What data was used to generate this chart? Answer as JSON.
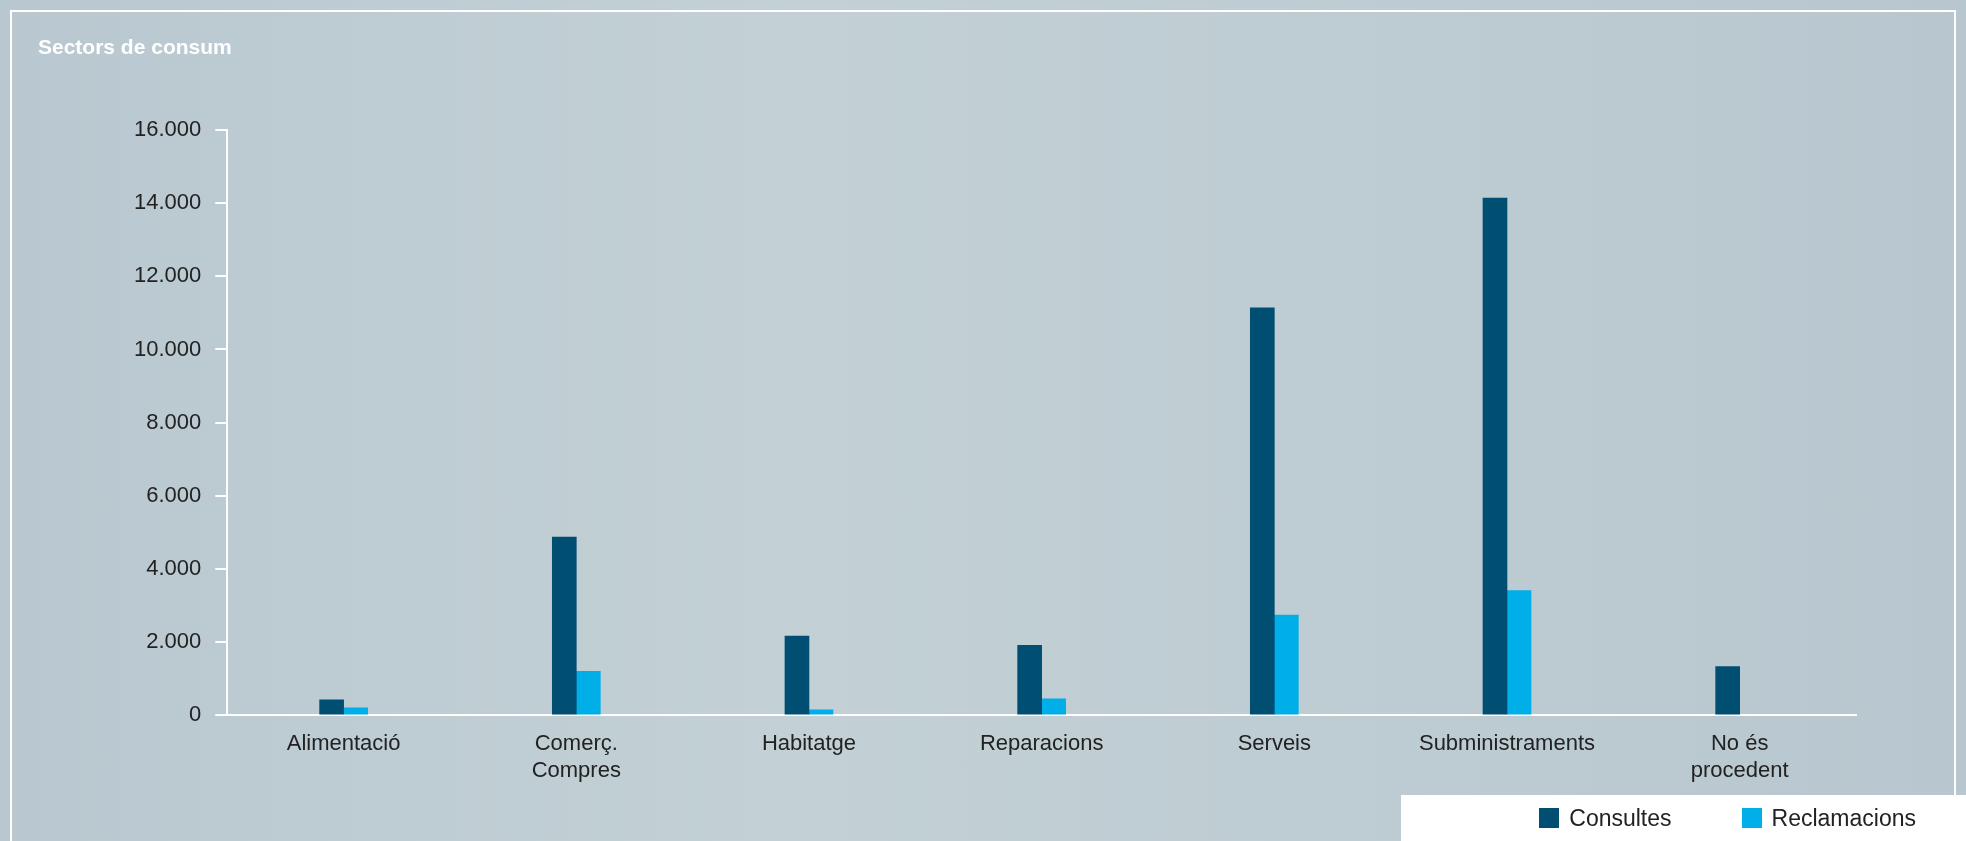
{
  "chart_data": {
    "type": "bar",
    "title": "Sectors de consum",
    "categories": [
      "Alimentació",
      "Comerç. Compres",
      "Habitatge",
      "Reparacions",
      "Serveis",
      "Subministraments",
      "No és procedent"
    ],
    "series": [
      {
        "name": "Consultes",
        "color": "#004f73",
        "values": [
          420,
          4870,
          2160,
          1910,
          11140,
          14140,
          1330
        ]
      },
      {
        "name": "Reclamacions",
        "color": "#00aee8",
        "values": [
          200,
          1200,
          150,
          450,
          2740,
          3410,
          null
        ]
      }
    ],
    "ylim": [
      0,
      16000
    ],
    "yticks": [
      0,
      {
        "value": 2000,
        "label": "2.000"
      },
      {
        "value": 4000,
        "label": "4.000"
      },
      {
        "value": 6000,
        "label": "6.000"
      },
      {
        "value": 8000,
        "label": "8.000"
      },
      {
        "value": 10000,
        "label": "10.000"
      },
      {
        "value": 12000,
        "label": "12.000"
      },
      {
        "value": 14000,
        "label": "14.000"
      },
      {
        "value": 16000,
        "label": "16.000"
      }
    ],
    "grid": false,
    "legend": "bottom right"
  }
}
